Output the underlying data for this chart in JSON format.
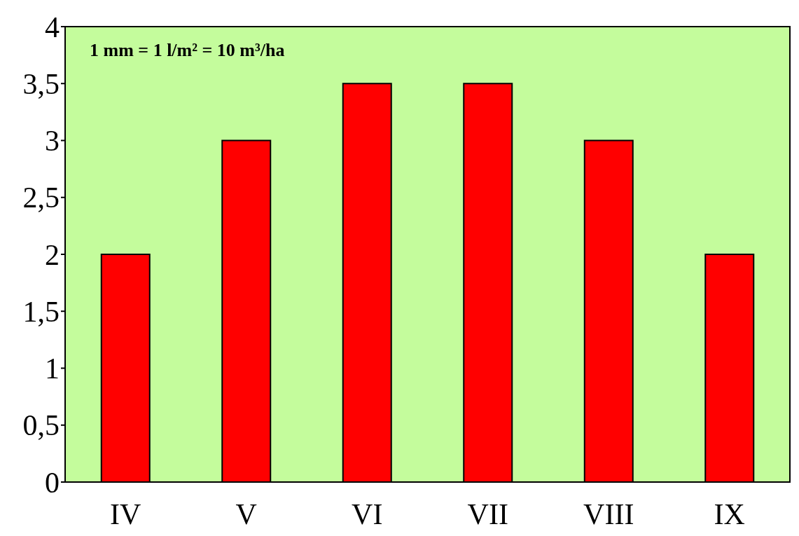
{
  "chart_data": {
    "type": "bar",
    "categories": [
      "IV",
      "V",
      "VI",
      "VII",
      "VIII",
      "IX"
    ],
    "values": [
      2,
      3,
      3.5,
      3.5,
      3,
      2
    ],
    "color": "#ff0000",
    "ylim": [
      0,
      4
    ],
    "yticks": [
      0,
      {
        "value": 0.5,
        "label": "0,5"
      },
      1,
      {
        "value": 1.5,
        "label": "1,5"
      },
      2,
      {
        "value": 2.5,
        "label": "2,5"
      },
      3,
      {
        "value": 3.5,
        "label": "3,5"
      },
      4
    ],
    "annotations": [
      "1 mm = 1 l/m² = 10 m³/ha"
    ]
  }
}
